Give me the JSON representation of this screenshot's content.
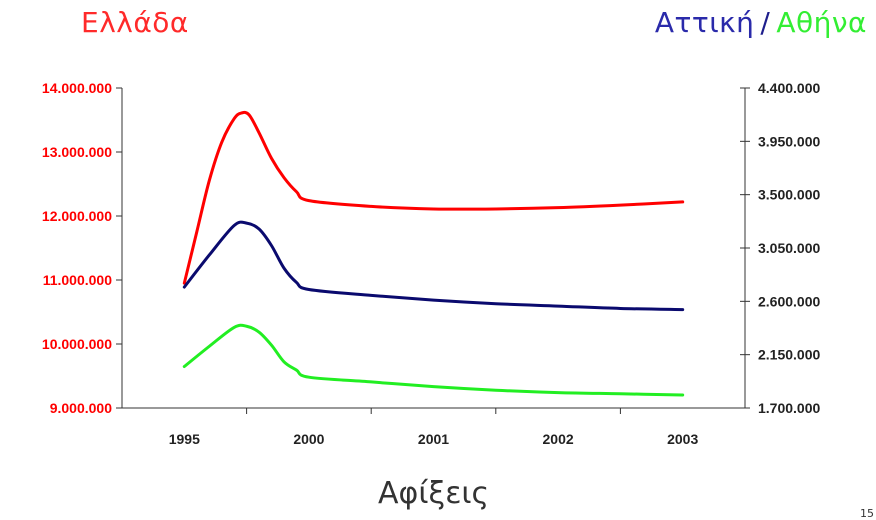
{
  "titles": {
    "left": "Ελλάδα",
    "right_series1": "Αττική",
    "separator": "/",
    "right_series2": "Αθήνα"
  },
  "page_number": "15",
  "colors": {
    "greece": "#ff0000",
    "attiki": "#0a0a6e",
    "athens": "#22ee22",
    "left_axis_text": "#ff0000",
    "right_axis_text": "#222222",
    "title_left": "#ff2a2a",
    "title_attiki": "#2a2aaa",
    "title_athens": "#33ee33"
  },
  "chart_data": {
    "type": "line",
    "x": [
      "1995",
      "2000",
      "2001",
      "2002",
      "2003"
    ],
    "xlabel": "Αφίξεις",
    "grid": false,
    "y_left": {
      "ticks": [
        "9.000.000",
        "10.000.000",
        "11.000.000",
        "12.000.000",
        "13.000.000",
        "14.000.000"
      ],
      "lim": [
        9000000,
        14000000
      ]
    },
    "y_right": {
      "ticks": [
        "1.700.000",
        "2.150.000",
        "2.600.000",
        "3.050.000",
        "3.500.000",
        "3.950.000",
        "4.400.000"
      ],
      "lim": [
        1700000,
        4400000
      ]
    },
    "series": [
      {
        "name": "Ελλάδα",
        "axis": "left",
        "color_key": "greece",
        "points": [
          [
            1995.0,
            10950000
          ],
          [
            1995.5,
            11750000
          ],
          [
            1996.0,
            12550000
          ],
          [
            1996.5,
            13150000
          ],
          [
            1997.0,
            13520000
          ],
          [
            1997.3,
            13610000
          ],
          [
            1997.6,
            13580000
          ],
          [
            1998.0,
            13300000
          ],
          [
            1998.5,
            12900000
          ],
          [
            1999.0,
            12600000
          ],
          [
            1999.5,
            12380000
          ],
          [
            2000.0,
            12240000
          ],
          [
            2000.5,
            12150000
          ],
          [
            2001.0,
            12110000
          ],
          [
            2001.5,
            12110000
          ],
          [
            2002.0,
            12130000
          ],
          [
            2002.5,
            12170000
          ],
          [
            2003.0,
            12220000
          ]
        ]
      },
      {
        "name": "Αττική",
        "axis": "right",
        "color_key": "attiki",
        "points": [
          [
            1995.0,
            2720000
          ],
          [
            1996.0,
            2990000
          ],
          [
            1997.0,
            3240000
          ],
          [
            1997.5,
            3260000
          ],
          [
            1998.0,
            3210000
          ],
          [
            1998.5,
            3070000
          ],
          [
            1999.0,
            2880000
          ],
          [
            1999.5,
            2760000
          ],
          [
            2000.0,
            2700000
          ],
          [
            2000.5,
            2650000
          ],
          [
            2001.0,
            2610000
          ],
          [
            2001.5,
            2580000
          ],
          [
            2002.0,
            2560000
          ],
          [
            2002.5,
            2540000
          ],
          [
            2003.0,
            2530000
          ]
        ]
      },
      {
        "name": "Αθήνα",
        "axis": "right",
        "color_key": "athens",
        "points": [
          [
            1995.0,
            2050000
          ],
          [
            1996.0,
            2220000
          ],
          [
            1997.0,
            2380000
          ],
          [
            1997.5,
            2390000
          ],
          [
            1998.0,
            2340000
          ],
          [
            1998.5,
            2230000
          ],
          [
            1999.0,
            2090000
          ],
          [
            1999.5,
            2020000
          ],
          [
            2000.0,
            1960000
          ],
          [
            2000.5,
            1920000
          ],
          [
            2001.0,
            1880000
          ],
          [
            2001.5,
            1850000
          ],
          [
            2002.0,
            1830000
          ],
          [
            2002.5,
            1820000
          ],
          [
            2003.0,
            1810000
          ]
        ]
      }
    ]
  }
}
